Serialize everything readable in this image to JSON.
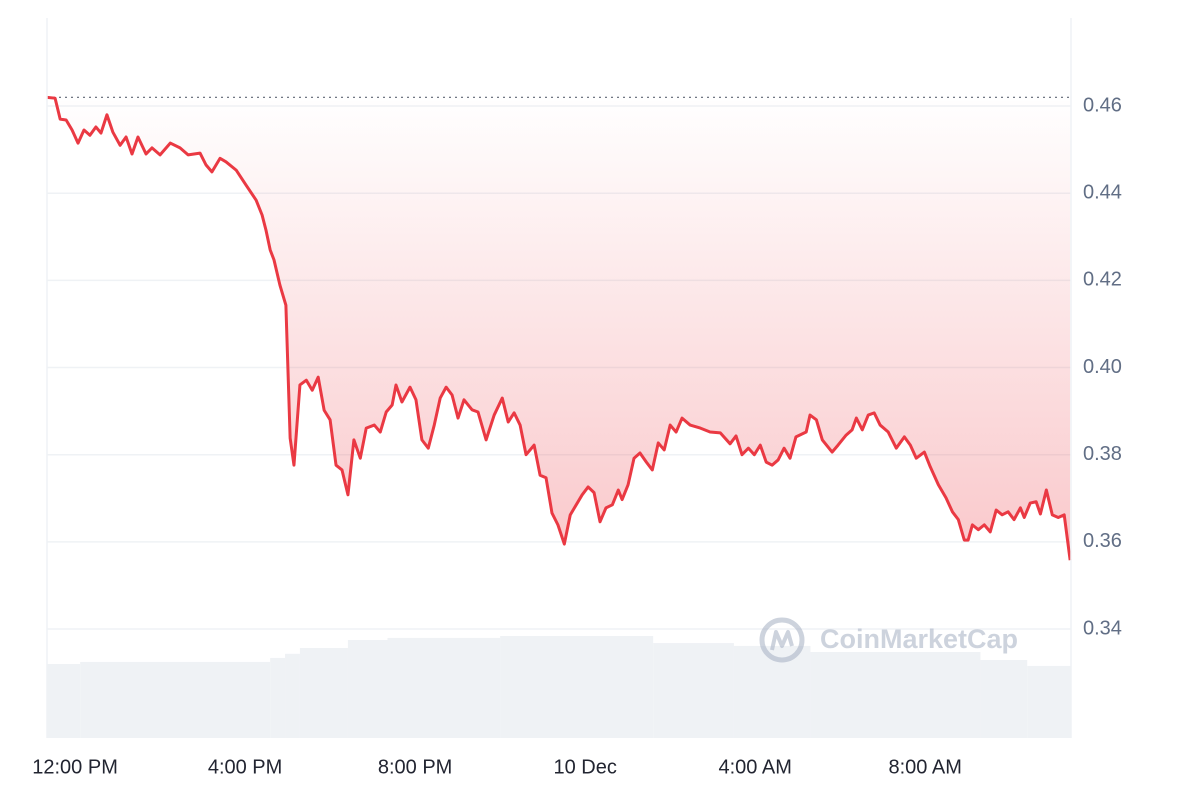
{
  "chart_data": {
    "type": "line",
    "color": "#ea3943",
    "watermark": "CoinMarketCap",
    "x": [
      -0.66,
      -0.47,
      -0.35,
      -0.21,
      -0.07,
      0.07,
      0.21,
      0.35,
      0.49,
      0.61,
      0.75,
      0.89,
      1.06,
      1.2,
      1.34,
      1.48,
      1.67,
      1.81,
      2.0,
      2.24,
      2.47,
      2.66,
      2.94,
      3.08,
      3.22,
      3.41,
      3.55,
      3.79,
      4.02,
      4.26,
      4.4,
      4.49,
      4.59,
      4.68,
      4.82,
      4.96,
      5.06,
      5.15,
      5.29,
      5.44,
      5.58,
      5.72,
      5.86,
      6.0,
      6.14,
      6.28,
      6.42,
      6.56,
      6.71,
      6.85,
      7.04,
      7.18,
      7.32,
      7.46,
      7.55,
      7.69,
      7.88,
      8.02,
      8.16,
      8.31,
      8.45,
      8.59,
      8.73,
      8.87,
      9.01,
      9.15,
      9.34,
      9.48,
      9.67,
      9.86,
      10.05,
      10.19,
      10.33,
      10.47,
      10.61,
      10.8,
      10.94,
      11.08,
      11.22,
      11.36,
      11.51,
      11.65,
      11.79,
      11.93,
      12.07,
      12.21,
      12.35,
      12.49,
      12.64,
      12.78,
      12.87,
      13.01,
      13.15,
      13.29,
      13.44,
      13.58,
      13.72,
      13.86,
      14.0,
      14.14,
      14.28,
      14.47,
      14.71,
      14.94,
      15.18,
      15.41,
      15.55,
      15.69,
      15.84,
      15.98,
      16.12,
      16.26,
      16.4,
      16.54,
      16.68,
      16.82,
      16.96,
      17.2,
      17.29,
      17.44,
      17.58,
      17.81,
      17.95,
      18.14,
      18.28,
      18.38,
      18.52,
      18.66,
      18.8,
      18.94,
      19.13,
      19.32,
      19.51,
      19.65,
      19.79,
      19.98,
      20.12,
      20.31,
      20.49,
      20.64,
      20.78,
      20.92,
      21.01,
      21.11,
      21.25,
      21.39,
      21.53,
      21.67,
      21.81,
      21.95,
      22.09,
      22.24,
      22.33,
      22.47,
      22.61,
      22.71,
      22.85,
      22.99,
      23.13,
      23.27,
      23.41
    ],
    "values": [
      0.462,
      0.4618,
      0.457,
      0.4568,
      0.4545,
      0.4515,
      0.4545,
      0.4533,
      0.4552,
      0.4538,
      0.458,
      0.454,
      0.451,
      0.4529,
      0.449,
      0.4529,
      0.449,
      0.4504,
      0.4488,
      0.4515,
      0.4504,
      0.4488,
      0.4492,
      0.4465,
      0.4449,
      0.448,
      0.4472,
      0.4453,
      0.4419,
      0.4384,
      0.435,
      0.4316,
      0.427,
      0.4247,
      0.4189,
      0.4143,
      0.3838,
      0.3776,
      0.396,
      0.3971,
      0.3948,
      0.3978,
      0.3902,
      0.388,
      0.3776,
      0.3765,
      0.3708,
      0.3834,
      0.3792,
      0.3861,
      0.3868,
      0.3852,
      0.3898,
      0.3914,
      0.396,
      0.3921,
      0.3955,
      0.3926,
      0.3834,
      0.3815,
      0.3868,
      0.393,
      0.3955,
      0.3937,
      0.3884,
      0.3926,
      0.3903,
      0.3898,
      0.3834,
      0.3891,
      0.393,
      0.3875,
      0.3896,
      0.3868,
      0.38,
      0.3822,
      0.3753,
      0.3747,
      0.3666,
      0.3639,
      0.3595,
      0.3662,
      0.3685,
      0.3708,
      0.3726,
      0.3713,
      0.3646,
      0.3678,
      0.3685,
      0.3719,
      0.3697,
      0.3731,
      0.3792,
      0.3804,
      0.3783,
      0.3765,
      0.3827,
      0.3811,
      0.3868,
      0.3852,
      0.3884,
      0.3868,
      0.3861,
      0.3852,
      0.385,
      0.3825,
      0.3843,
      0.38,
      0.3815,
      0.38,
      0.3822,
      0.3783,
      0.3776,
      0.3788,
      0.3815,
      0.3792,
      0.3841,
      0.3852,
      0.3891,
      0.388,
      0.3834,
      0.3806,
      0.3822,
      0.3845,
      0.3857,
      0.3884,
      0.3857,
      0.3891,
      0.3896,
      0.3868,
      0.3852,
      0.3815,
      0.3841,
      0.3822,
      0.3792,
      0.3806,
      0.3772,
      0.3731,
      0.3701,
      0.3669,
      0.3651,
      0.3604,
      0.3604,
      0.3639,
      0.3628,
      0.3639,
      0.3623,
      0.3673,
      0.3662,
      0.3669,
      0.3651,
      0.3678,
      0.3656,
      0.3689,
      0.3692,
      0.3664,
      0.3719,
      0.3662,
      0.3656,
      0.3662,
      0.3558
    ],
    "xlim": [
      -0.66,
      23.43
    ],
    "xticks": [
      {
        "value": 0,
        "label": "12:00 PM"
      },
      {
        "value": 4,
        "label": "4:00 PM"
      },
      {
        "value": 8,
        "label": "8:00 PM"
      },
      {
        "value": 12,
        "label": "10 Dec"
      },
      {
        "value": 16,
        "label": "4:00 AM"
      },
      {
        "value": 20,
        "label": "8:00 AM"
      }
    ],
    "ylim": [
      0.315,
      0.4802
    ],
    "yticks": [
      0.34,
      0.36,
      0.38,
      {
        "value": 0.4,
        "label": "0.40"
      },
      0.42,
      0.44,
      0.46
    ],
    "grid": true,
    "volume": {
      "color": "#eff2f5",
      "ylim": [
        0,
        100
      ],
      "x": [
        -0.66,
        0.12,
        4.59,
        4.94,
        5.29,
        6.42,
        7.35,
        10.0,
        13.6,
        15.5,
        17.3,
        21.3,
        22.4
      ],
      "values": [
        53.6,
        55.1,
        58,
        61,
        65.2,
        71.0,
        72.5,
        73.9,
        68.8,
        66.7,
        62.3,
        56.5,
        52.2
      ]
    }
  }
}
